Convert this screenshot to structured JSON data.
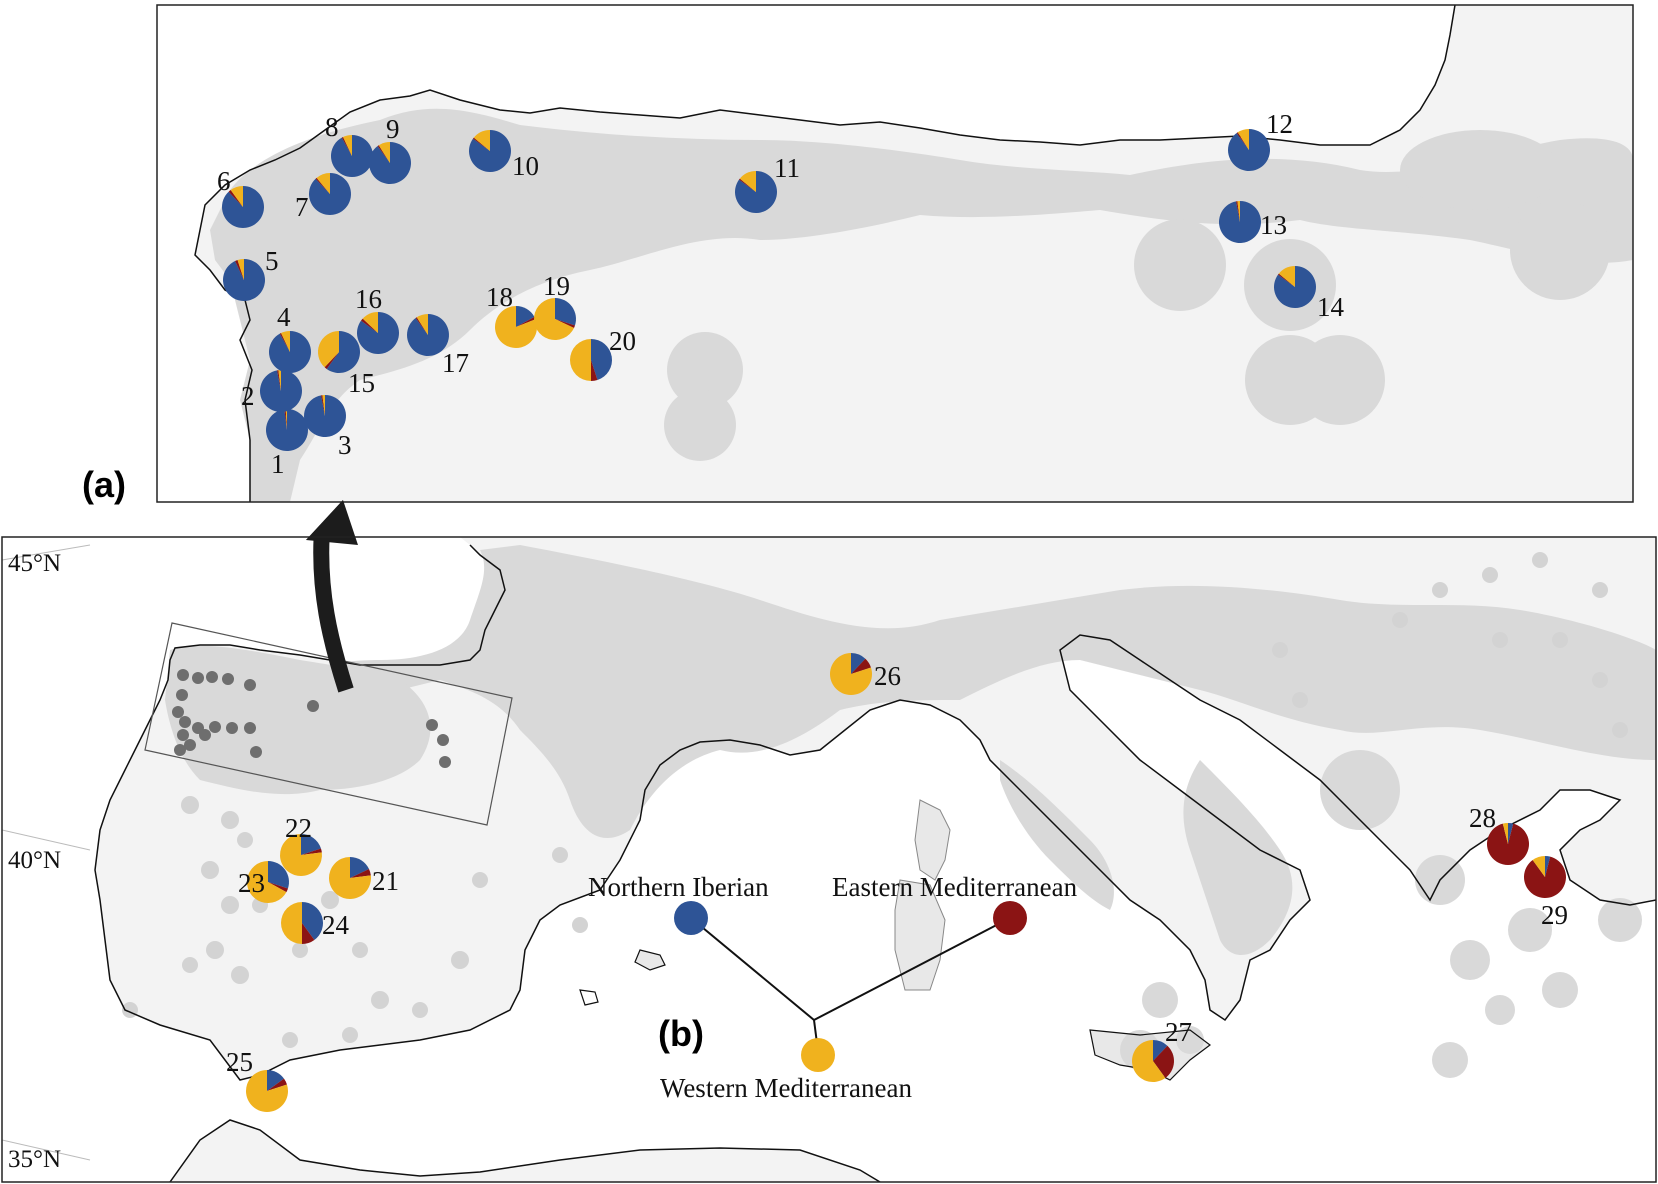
{
  "panels": {
    "a": "(a)",
    "b": "(b)"
  },
  "latitudes": [
    "45°N",
    "40°N",
    "35°N"
  ],
  "clusters": {
    "northern_iberian": {
      "label": "Northern Iberian",
      "color": "#2e5496"
    },
    "eastern_mediterranean": {
      "label": "Eastern Mediterranean",
      "color": "#8b1414"
    },
    "western_mediterranean": {
      "label": "Western Mediterranean",
      "color": "#f0b21e"
    }
  },
  "sites_panel_a": [
    {
      "id": "1",
      "proportions": {
        "northern_iberian": 0.98,
        "western_mediterranean": 0.01,
        "eastern_mediterranean": 0.01
      }
    },
    {
      "id": "2",
      "proportions": {
        "northern_iberian": 0.97,
        "western_mediterranean": 0.02,
        "eastern_mediterranean": 0.01
      }
    },
    {
      "id": "3",
      "proportions": {
        "northern_iberian": 0.97,
        "western_mediterranean": 0.02,
        "eastern_mediterranean": 0.01
      }
    },
    {
      "id": "4",
      "proportions": {
        "northern_iberian": 0.92,
        "western_mediterranean": 0.07,
        "eastern_mediterranean": 0.01
      }
    },
    {
      "id": "5",
      "proportions": {
        "northern_iberian": 0.93,
        "western_mediterranean": 0.05,
        "eastern_mediterranean": 0.02
      }
    },
    {
      "id": "6",
      "proportions": {
        "northern_iberian": 0.88,
        "western_mediterranean": 0.1,
        "eastern_mediterranean": 0.02
      }
    },
    {
      "id": "7",
      "proportions": {
        "northern_iberian": 0.88,
        "western_mediterranean": 0.11,
        "eastern_mediterranean": 0.01
      }
    },
    {
      "id": "8",
      "proportions": {
        "northern_iberian": 0.92,
        "western_mediterranean": 0.07,
        "eastern_mediterranean": 0.01
      }
    },
    {
      "id": "9",
      "proportions": {
        "northern_iberian": 0.9,
        "western_mediterranean": 0.09,
        "eastern_mediterranean": 0.01
      }
    },
    {
      "id": "10",
      "proportions": {
        "northern_iberian": 0.85,
        "western_mediterranean": 0.14,
        "eastern_mediterranean": 0.01
      }
    },
    {
      "id": "11",
      "proportions": {
        "northern_iberian": 0.85,
        "western_mediterranean": 0.14,
        "eastern_mediterranean": 0.01
      }
    },
    {
      "id": "12",
      "proportions": {
        "northern_iberian": 0.9,
        "western_mediterranean": 0.09,
        "eastern_mediterranean": 0.01
      }
    },
    {
      "id": "13",
      "proportions": {
        "northern_iberian": 0.97,
        "western_mediterranean": 0.02,
        "eastern_mediterranean": 0.01
      }
    },
    {
      "id": "14",
      "proportions": {
        "northern_iberian": 0.85,
        "western_mediterranean": 0.14,
        "eastern_mediterranean": 0.01
      }
    },
    {
      "id": "15",
      "proportions": {
        "northern_iberian": 0.6,
        "western_mediterranean": 0.38,
        "eastern_mediterranean": 0.02
      }
    },
    {
      "id": "16",
      "proportions": {
        "northern_iberian": 0.85,
        "western_mediterranean": 0.13,
        "eastern_mediterranean": 0.02
      }
    },
    {
      "id": "17",
      "proportions": {
        "northern_iberian": 0.9,
        "western_mediterranean": 0.09,
        "eastern_mediterranean": 0.01
      }
    },
    {
      "id": "18",
      "proportions": {
        "northern_iberian": 0.17,
        "western_mediterranean": 0.81,
        "eastern_mediterranean": 0.02
      }
    },
    {
      "id": "19",
      "proportions": {
        "northern_iberian": 0.3,
        "western_mediterranean": 0.68,
        "eastern_mediterranean": 0.02
      }
    },
    {
      "id": "20",
      "proportions": {
        "northern_iberian": 0.45,
        "western_mediterranean": 0.5,
        "eastern_mediterranean": 0.05
      }
    }
  ],
  "sites_panel_b": [
    {
      "id": "21",
      "proportions": {
        "northern_iberian": 0.18,
        "western_mediterranean": 0.77,
        "eastern_mediterranean": 0.05
      }
    },
    {
      "id": "22",
      "proportions": {
        "northern_iberian": 0.2,
        "western_mediterranean": 0.77,
        "eastern_mediterranean": 0.03
      }
    },
    {
      "id": "23",
      "proportions": {
        "northern_iberian": 0.3,
        "western_mediterranean": 0.67,
        "eastern_mediterranean": 0.03
      }
    },
    {
      "id": "24",
      "proportions": {
        "northern_iberian": 0.4,
        "western_mediterranean": 0.5,
        "eastern_mediterranean": 0.1
      }
    },
    {
      "id": "25",
      "proportions": {
        "northern_iberian": 0.15,
        "western_mediterranean": 0.8,
        "eastern_mediterranean": 0.05
      }
    },
    {
      "id": "26",
      "proportions": {
        "northern_iberian": 0.12,
        "western_mediterranean": 0.8,
        "eastern_mediterranean": 0.08
      }
    },
    {
      "id": "27",
      "proportions": {
        "northern_iberian": 0.12,
        "western_mediterranean": 0.6,
        "eastern_mediterranean": 0.28
      }
    },
    {
      "id": "28",
      "proportions": {
        "northern_iberian": 0.04,
        "western_mediterranean": 0.04,
        "eastern_mediterranean": 0.92
      }
    },
    {
      "id": "29",
      "proportions": {
        "northern_iberian": 0.04,
        "western_mediterranean": 0.1,
        "eastern_mediterranean": 0.86
      }
    }
  ],
  "colors": {
    "land": "#f3f3f3",
    "range": "#d9d9d9",
    "sampling_dot": "#6e6e6e",
    "coastline": "#111111"
  }
}
